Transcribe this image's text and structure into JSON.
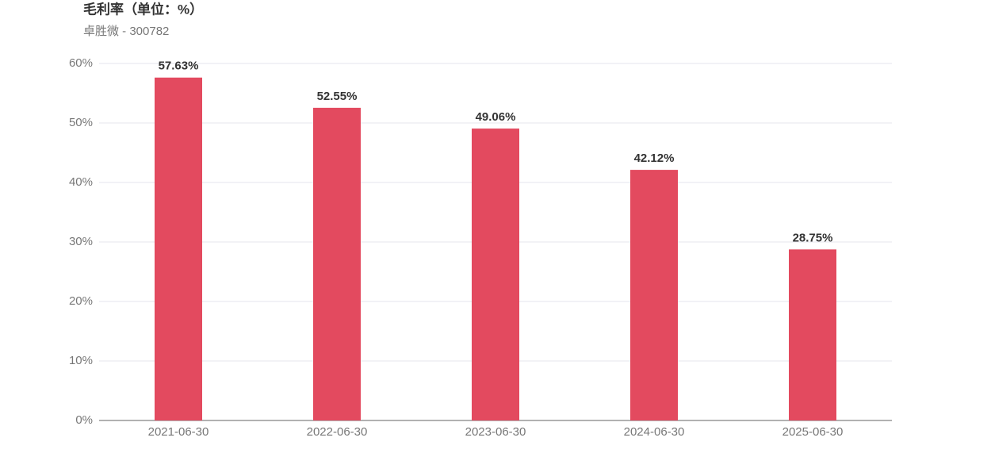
{
  "chart_data": {
    "type": "bar",
    "title": "毛利率（单位：%）",
    "subtitle": "卓胜微 - 300782",
    "categories": [
      "2021-06-30",
      "2022-06-30",
      "2023-06-30",
      "2024-06-30",
      "2025-06-30"
    ],
    "values": [
      57.63,
      52.55,
      49.06,
      42.12,
      28.75
    ],
    "value_labels": [
      "57.63%",
      "52.55%",
      "49.06%",
      "42.12%",
      "28.75%"
    ],
    "color": "#e34a5f",
    "ylim": [
      0,
      60
    ],
    "yticks": [
      {
        "value": 0,
        "label": "0%"
      },
      {
        "value": 10,
        "label": "10%"
      },
      {
        "value": 20,
        "label": "20%"
      },
      {
        "value": 30,
        "label": "30%"
      },
      {
        "value": 40,
        "label": "40%"
      },
      {
        "value": 50,
        "label": "50%"
      },
      {
        "value": 60,
        "label": "60%"
      }
    ],
    "grid": true
  }
}
